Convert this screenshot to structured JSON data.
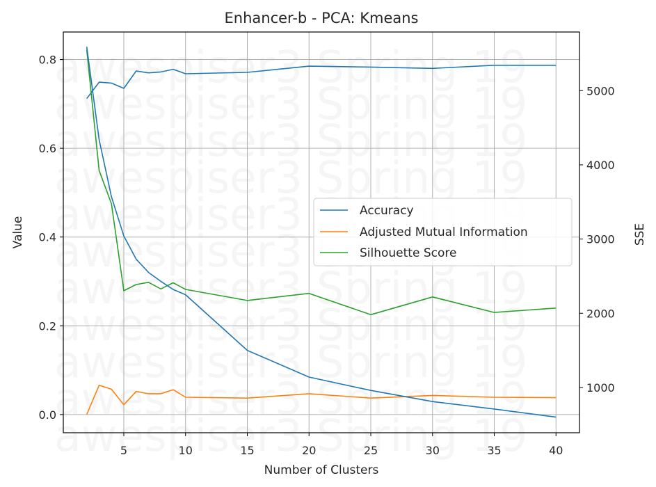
{
  "chart_data": {
    "type": "line",
    "title": "Enhancer-b - PCA: Kmeans",
    "xlabel": "Number of Clusters",
    "ylabel": "Value",
    "y2label": "SSE",
    "xlim": [
      0.1,
      41.9
    ],
    "ylim": [
      -0.041,
      0.862
    ],
    "y2lim": [
      390,
      5790
    ],
    "grid": true,
    "legend_position": "center-right",
    "x_ticks": [
      5,
      10,
      15,
      20,
      25,
      30,
      35,
      40
    ],
    "y_ticks": [
      0.0,
      0.2,
      0.4,
      0.6,
      0.8
    ],
    "y2_ticks": [
      1000,
      2000,
      3000,
      4000,
      5000
    ],
    "x": [
      2,
      3,
      4,
      5,
      6,
      7,
      8,
      9,
      10,
      15,
      20,
      25,
      30,
      35,
      40
    ],
    "series": [
      {
        "name": "Accuracy",
        "axis": "left",
        "color": "#1f77b4",
        "values": [
          0.712,
          0.749,
          0.747,
          0.735,
          0.774,
          0.77,
          0.772,
          0.778,
          0.768,
          0.771,
          0.785,
          0.783,
          0.78,
          0.787,
          0.787
        ]
      },
      {
        "name": "Adjusted Mutual Information",
        "axis": "left",
        "color": "#ff7f0e",
        "values": [
          0.0,
          0.066,
          0.057,
          0.022,
          0.052,
          0.047,
          0.047,
          0.056,
          0.039,
          0.037,
          0.047,
          0.037,
          0.043,
          0.039,
          0.038
        ]
      },
      {
        "name": "Silhouette Score",
        "axis": "left",
        "color": "#2ca02c",
        "values": [
          0.822,
          0.55,
          0.475,
          0.279,
          0.293,
          0.298,
          0.283,
          0.297,
          0.282,
          0.257,
          0.273,
          0.225,
          0.265,
          0.23,
          0.24
        ]
      },
      {
        "name": "SSE",
        "axis": "right",
        "color": "#1f77b4",
        "values": [
          5590,
          4340,
          3570,
          3040,
          2730,
          2550,
          2430,
          2320,
          2250,
          1500,
          1140,
          960,
          810,
          710,
          600
        ]
      }
    ],
    "legend": [
      "Accuracy",
      "Adjusted Mutual Information",
      "Silhouette Score"
    ]
  },
  "watermark": {
    "text": "awespiser3 Spring 19",
    "rows": 11
  }
}
